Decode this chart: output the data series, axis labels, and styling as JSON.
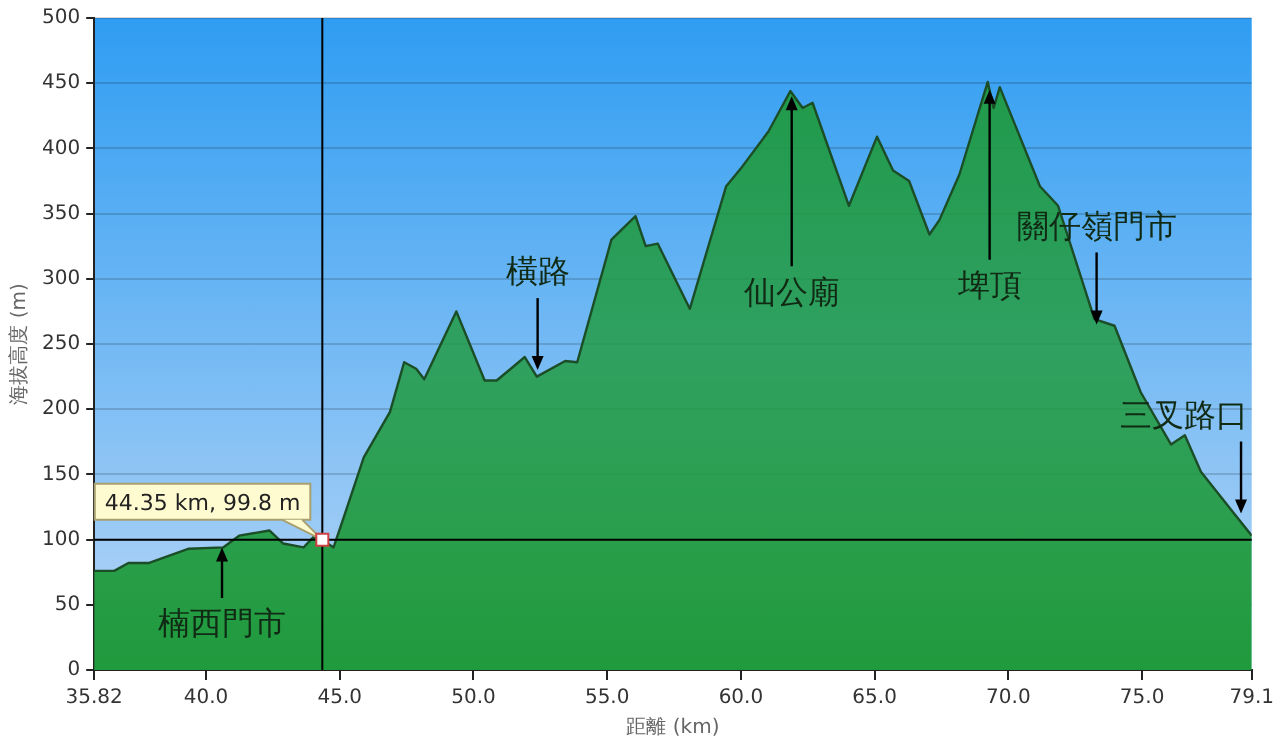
{
  "chart_data": {
    "type": "area",
    "xlabel": "距離 (km)",
    "ylabel": "海拔高度 (m)",
    "xlim": [
      35.82,
      79.1
    ],
    "ylim": [
      0,
      500
    ],
    "xticks": [
      35.82,
      {
        "value": 40,
        "label": "40.0"
      },
      {
        "value": 45,
        "label": "45.0"
      },
      {
        "value": 50,
        "label": "50.0"
      },
      {
        "value": 55,
        "label": "55.0"
      },
      {
        "value": 60,
        "label": "60.0"
      },
      {
        "value": 65,
        "label": "65.0"
      },
      {
        "value": 70,
        "label": "70.0"
      },
      {
        "value": 75,
        "label": "75.0"
      },
      79.1
    ],
    "yticks": [
      0,
      50,
      100,
      150,
      200,
      250,
      300,
      350,
      400,
      450,
      500
    ],
    "grid": "y",
    "legend": false,
    "series": [
      {
        "color": "#1f9a3c",
        "x": [
          35.82,
          36.57,
          37.1,
          37.85,
          39.36,
          40.64,
          41.24,
          42.37,
          42.89,
          43.65,
          44.02,
          44.35,
          44.77,
          45.15,
          45.9,
          46.88,
          47.41,
          47.86,
          48.16,
          49.36,
          50.42,
          50.87,
          51.92,
          52.37,
          53.43,
          53.88,
          55.16,
          56.06,
          56.44,
          56.89,
          58.09,
          59.45,
          60.05,
          61.03,
          61.85,
          62.31,
          62.68,
          64.04,
          65.09,
          65.69,
          66.29,
          67.05,
          67.42,
          68.17,
          69.23,
          69.45,
          69.68,
          71.18,
          71.86,
          73.22,
          73.97,
          74.95,
          76.08,
          76.6,
          77.2,
          79.1
        ],
        "values": [
          76,
          76,
          82,
          82,
          93,
          94,
          103,
          107,
          97,
          94,
          102,
          99.8,
          94,
          117,
          163,
          198,
          236,
          231,
          223,
          275,
          222,
          222,
          240,
          225,
          237,
          236,
          330,
          348,
          325,
          327,
          277,
          371,
          386,
          413,
          444,
          431,
          435,
          356,
          409,
          383,
          375,
          334,
          345,
          380,
          451,
          431,
          447,
          371,
          356,
          269,
          264,
          213,
          173,
          180,
          152,
          103
        ]
      }
    ],
    "ref_lines": [
      {
        "axis": "x",
        "value": 44.35,
        "color": "#000000"
      },
      {
        "axis": "y",
        "value": 99.8,
        "color": "#000000"
      }
    ],
    "annotations": [
      {
        "text": "44.35 km, 99.8 m",
        "x": 44.35,
        "y": 99.8
      },
      {
        "text": "楠西門市",
        "x": 40.6,
        "y": 94
      },
      {
        "text": "橫路",
        "x": 52.4,
        "y": 230
      },
      {
        "text": "仙公廟",
        "x": 61.9,
        "y": 440
      },
      {
        "text": "埤頂",
        "x": 69.3,
        "y": 445
      },
      {
        "text": "關仔嶺門市",
        "x": 73.3,
        "y": 265
      },
      {
        "text": "三叉路口",
        "x": 78.7,
        "y": 120
      }
    ]
  }
}
